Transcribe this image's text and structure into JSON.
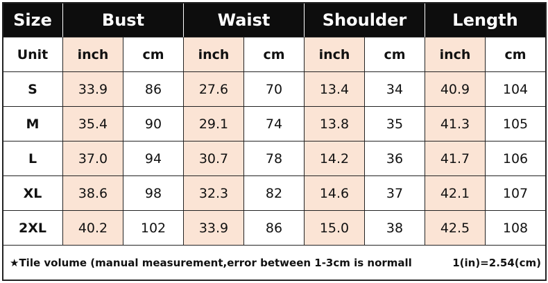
{
  "table": {
    "header": [
      "Size",
      "Bust",
      "Waist",
      "Shoulder",
      "Length"
    ],
    "units": [
      "Unit",
      "inch",
      "cm",
      "inch",
      "cm",
      "inch",
      "cm",
      "inch",
      "cm"
    ],
    "rows": [
      [
        "S",
        "33.9",
        "86",
        "27.6",
        "70",
        "13.4",
        "34",
        "40.9",
        "104"
      ],
      [
        "M",
        "35.4",
        "90",
        "29.1",
        "74",
        "13.8",
        "35",
        "41.3",
        "105"
      ],
      [
        "L",
        "37.0",
        "94",
        "30.7",
        "78",
        "14.2",
        "36",
        "41.7",
        "106"
      ],
      [
        "XL",
        "38.6",
        "98",
        "32.3",
        "82",
        "14.6",
        "37",
        "42.1",
        "107"
      ],
      [
        "2XL",
        "40.2",
        "102",
        "33.9",
        "86",
        "15.0",
        "38",
        "42.5",
        "108"
      ]
    ],
    "note": "★Tile volume (manual measurement,error between 1-3cm is normall",
    "conversion": "1(in)=2.54(cm)"
  }
}
